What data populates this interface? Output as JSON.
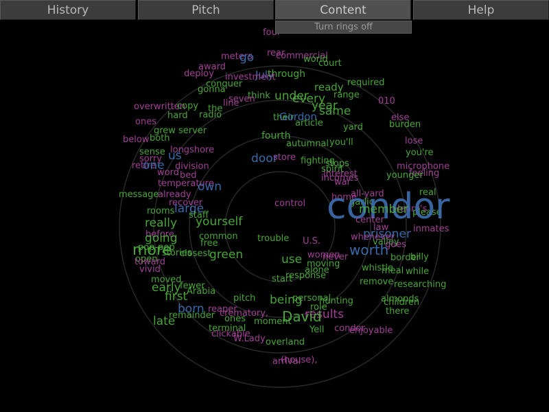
{
  "tabs": [
    {
      "label": "History",
      "active": false
    },
    {
      "label": "Pitch",
      "active": false
    },
    {
      "label": "Content",
      "active": true
    },
    {
      "label": "Help",
      "active": false
    }
  ],
  "content_menu": {
    "rings_toggle_label": "Turn rings off"
  },
  "colors": {
    "background": "#000000",
    "green": "#4caf3a",
    "purple": "#a8449c",
    "blue": "#3d6fb0",
    "light_green": "#8fb36a",
    "ring": "#2a2a2a"
  },
  "words": [
    {
      "text": "four",
      "color": "purple",
      "size": 13
    },
    {
      "text": "rear",
      "color": "purple",
      "size": 13
    },
    {
      "text": "commercial",
      "color": "purple",
      "size": 13
    },
    {
      "text": "meters",
      "color": "purple",
      "size": 13
    },
    {
      "text": "go",
      "color": "blue",
      "size": 17
    },
    {
      "text": "world",
      "color": "green",
      "size": 13
    },
    {
      "text": "court",
      "color": "green",
      "size": 13
    },
    {
      "text": "award",
      "color": "purple",
      "size": 13
    },
    {
      "text": "deploy",
      "color": "purple",
      "size": 13
    },
    {
      "text": "July",
      "color": "blue",
      "size": 15
    },
    {
      "text": "through",
      "color": "green",
      "size": 14
    },
    {
      "text": "required",
      "color": "green",
      "size": 13
    },
    {
      "text": "conquer",
      "color": "green",
      "size": 13
    },
    {
      "text": "gonna",
      "color": "green",
      "size": 13
    },
    {
      "text": "investment",
      "color": "purple",
      "size": 13
    },
    {
      "text": "ready",
      "color": "green",
      "size": 15
    },
    {
      "text": "range",
      "color": "green",
      "size": 13
    },
    {
      "text": "think",
      "color": "green",
      "size": 13
    },
    {
      "text": "seven",
      "color": "purple",
      "size": 13
    },
    {
      "text": "under",
      "color": "green",
      "size": 17
    },
    {
      "text": "every",
      "color": "green",
      "size": 17
    },
    {
      "text": "010",
      "color": "purple",
      "size": 13
    },
    {
      "text": "overwritten",
      "color": "purple",
      "size": 13
    },
    {
      "text": "copy",
      "color": "green",
      "size": 13
    },
    {
      "text": "line",
      "color": "purple",
      "size": 13
    },
    {
      "text": "the",
      "color": "green",
      "size": 13
    },
    {
      "text": "year",
      "color": "green",
      "size": 17
    },
    {
      "text": "same",
      "color": "green",
      "size": 17
    },
    {
      "text": "hard",
      "color": "green",
      "size": 13
    },
    {
      "text": "radio",
      "color": "green",
      "size": 13
    },
    {
      "text": "their",
      "color": "green",
      "size": 13
    },
    {
      "text": "Gordon",
      "color": "blue",
      "size": 15
    },
    {
      "text": "article",
      "color": "green",
      "size": 13
    },
    {
      "text": "else",
      "color": "purple",
      "size": 13
    },
    {
      "text": "ones",
      "color": "purple",
      "size": 13
    },
    {
      "text": "grew",
      "color": "green",
      "size": 13
    },
    {
      "text": "server",
      "color": "green",
      "size": 13
    },
    {
      "text": "yard",
      "color": "green",
      "size": 13
    },
    {
      "text": "burden",
      "color": "green",
      "size": 13
    },
    {
      "text": "below",
      "color": "purple",
      "size": 13
    },
    {
      "text": "both",
      "color": "green",
      "size": 13
    },
    {
      "text": "fourth",
      "color": "green",
      "size": 14
    },
    {
      "text": "you'll",
      "color": "green",
      "size": 13
    },
    {
      "text": "lose",
      "color": "purple",
      "size": 13
    },
    {
      "text": "sense",
      "color": "green",
      "size": 13
    },
    {
      "text": "longshore",
      "color": "purple",
      "size": 13
    },
    {
      "text": "autumnal",
      "color": "green",
      "size": 13
    },
    {
      "text": "you're",
      "color": "green",
      "size": 13
    },
    {
      "text": "sorry",
      "color": "purple",
      "size": 13
    },
    {
      "text": "us",
      "color": "blue",
      "size": 17
    },
    {
      "text": "door",
      "color": "blue",
      "size": 17
    },
    {
      "text": "store",
      "color": "purple",
      "size": 13
    },
    {
      "text": "fighting",
      "color": "green",
      "size": 13
    },
    {
      "text": "stops",
      "color": "green",
      "size": 13
    },
    {
      "text": "microphone",
      "color": "purple",
      "size": 13
    },
    {
      "text": "retire",
      "color": "purple",
      "size": 13
    },
    {
      "text": "one",
      "color": "blue",
      "size": 17
    },
    {
      "text": "division",
      "color": "purple",
      "size": 13
    },
    {
      "text": "spirit",
      "color": "green",
      "size": 13
    },
    {
      "text": "interest",
      "color": "purple",
      "size": 13
    },
    {
      "text": "feeling",
      "color": "purple",
      "size": 13
    },
    {
      "text": "word",
      "color": "purple",
      "size": 13
    },
    {
      "text": "bed",
      "color": "purple",
      "size": 13
    },
    {
      "text": "incomes",
      "color": "purple",
      "size": 13
    },
    {
      "text": "younger",
      "color": "green",
      "size": 13
    },
    {
      "text": "war",
      "color": "purple",
      "size": 13
    },
    {
      "text": "temperature",
      "color": "purple",
      "size": 13
    },
    {
      "text": "own",
      "color": "blue",
      "size": 17
    },
    {
      "text": "real",
      "color": "green",
      "size": 13
    },
    {
      "text": "message",
      "color": "green",
      "size": 13
    },
    {
      "text": "already",
      "color": "purple",
      "size": 13
    },
    {
      "text": "all-yard",
      "color": "purple",
      "size": 13
    },
    {
      "text": "home",
      "color": "purple",
      "size": 13
    },
    {
      "text": "recover",
      "color": "purple",
      "size": 13
    },
    {
      "text": "garlic",
      "color": "green",
      "size": 13
    },
    {
      "text": "rooms",
      "color": "green",
      "size": 13
    },
    {
      "text": "large",
      "color": "blue",
      "size": 17
    },
    {
      "text": "Henry's",
      "color": "purple",
      "size": 13
    },
    {
      "text": "please",
      "color": "green",
      "size": 13
    },
    {
      "text": "trouble",
      "color": "green",
      "size": 13
    },
    {
      "text": "condor",
      "color": "blue",
      "size": 52
    },
    {
      "text": "member",
      "color": "green",
      "size": 17
    },
    {
      "text": "staff",
      "color": "green",
      "size": 13
    },
    {
      "text": "center",
      "color": "purple",
      "size": 13
    },
    {
      "text": "really",
      "color": "green",
      "size": 17
    },
    {
      "text": "yourself",
      "color": "green",
      "size": 17
    },
    {
      "text": "law",
      "color": "purple",
      "size": 13
    },
    {
      "text": "inmates",
      "color": "purple",
      "size": 13
    },
    {
      "text": "before",
      "color": "purple",
      "size": 13
    },
    {
      "text": "prisoner",
      "color": "blue",
      "size": 17
    },
    {
      "text": "common",
      "color": "green",
      "size": 13
    },
    {
      "text": "U.S.",
      "color": "purple",
      "size": 13
    },
    {
      "text": "going",
      "color": "green",
      "size": 17
    },
    {
      "text": "whenever",
      "color": "purple",
      "size": 13
    },
    {
      "text": "valley",
      "color": "green",
      "size": 13
    },
    {
      "text": "goes",
      "color": "purple",
      "size": 13
    },
    {
      "text": "pop-pop",
      "color": "green",
      "size": 13
    },
    {
      "text": "free",
      "color": "green",
      "size": 13
    },
    {
      "text": "never",
      "color": "purple",
      "size": 13
    },
    {
      "text": "more",
      "color": "green",
      "size": 22
    },
    {
      "text": "stories",
      "color": "green",
      "size": 13
    },
    {
      "text": "closest",
      "color": "green",
      "size": 13
    },
    {
      "text": "green",
      "color": "green",
      "size": 17
    },
    {
      "text": "use",
      "color": "green",
      "size": 17
    },
    {
      "text": "worth",
      "color": "blue",
      "size": 20
    },
    {
      "text": "border",
      "color": "green",
      "size": 13
    },
    {
      "text": "billy",
      "color": "green",
      "size": 13
    },
    {
      "text": "open",
      "color": "green",
      "size": 13
    },
    {
      "text": "toward",
      "color": "purple",
      "size": 13
    },
    {
      "text": "women",
      "color": "purple",
      "size": 13
    },
    {
      "text": "whistle",
      "color": "green",
      "size": 13
    },
    {
      "text": "vivid",
      "color": "purple",
      "size": 13
    },
    {
      "text": "moving",
      "color": "green",
      "size": 13
    },
    {
      "text": "alone",
      "color": "green",
      "size": 13
    },
    {
      "text": "meal",
      "color": "green",
      "size": 13
    },
    {
      "text": "while",
      "color": "green",
      "size": 13
    },
    {
      "text": "response",
      "color": "green",
      "size": 13
    },
    {
      "text": "moved",
      "color": "green",
      "size": 13
    },
    {
      "text": "start",
      "color": "green",
      "size": 13
    },
    {
      "text": "remove",
      "color": "green",
      "size": 13
    },
    {
      "text": "researching",
      "color": "green",
      "size": 13
    },
    {
      "text": "fewer",
      "color": "green",
      "size": 13
    },
    {
      "text": "early",
      "color": "green",
      "size": 17
    },
    {
      "text": "Arabia",
      "color": "green",
      "size": 13
    },
    {
      "text": "first",
      "color": "green",
      "size": 17
    },
    {
      "text": "pitch",
      "color": "green",
      "size": 13
    },
    {
      "text": "personal",
      "color": "green",
      "size": 13
    },
    {
      "text": "being",
      "color": "green",
      "size": 17
    },
    {
      "text": "hunting",
      "color": "green",
      "size": 13
    },
    {
      "text": "almonds",
      "color": "green",
      "size": 13
    },
    {
      "text": "children",
      "color": "green",
      "size": 13
    },
    {
      "text": "reaper",
      "color": "purple",
      "size": 13
    },
    {
      "text": "born",
      "color": "blue",
      "size": 17
    },
    {
      "text": "role",
      "color": "green",
      "size": 13
    },
    {
      "text": "there",
      "color": "green",
      "size": 13
    },
    {
      "text": "remainder",
      "color": "green",
      "size": 13
    },
    {
      "text": "crematory,",
      "color": "purple",
      "size": 13
    },
    {
      "text": "ones",
      "color": "green",
      "size": 13
    },
    {
      "text": "results",
      "color": "purple",
      "size": 17
    },
    {
      "text": "David",
      "color": "green",
      "size": 20
    },
    {
      "text": "moment",
      "color": "green",
      "size": 13
    },
    {
      "text": "condor",
      "color": "purple",
      "size": 13
    },
    {
      "text": "late",
      "color": "green",
      "size": 17
    },
    {
      "text": "terminal",
      "color": "green",
      "size": 13
    },
    {
      "text": "Yell",
      "color": "green",
      "size": 13
    },
    {
      "text": "enjoyable",
      "color": "purple",
      "size": 13
    },
    {
      "text": "clickable",
      "color": "purple",
      "size": 13
    },
    {
      "text": "W.Lady,",
      "color": "purple",
      "size": 13
    },
    {
      "text": "overland",
      "color": "green",
      "size": 13
    },
    {
      "text": "(house),",
      "color": "purple",
      "size": 13
    },
    {
      "text": "arrival",
      "color": "purple",
      "size": 13
    },
    {
      "text": "control",
      "color": "purple",
      "size": 13
    }
  ]
}
